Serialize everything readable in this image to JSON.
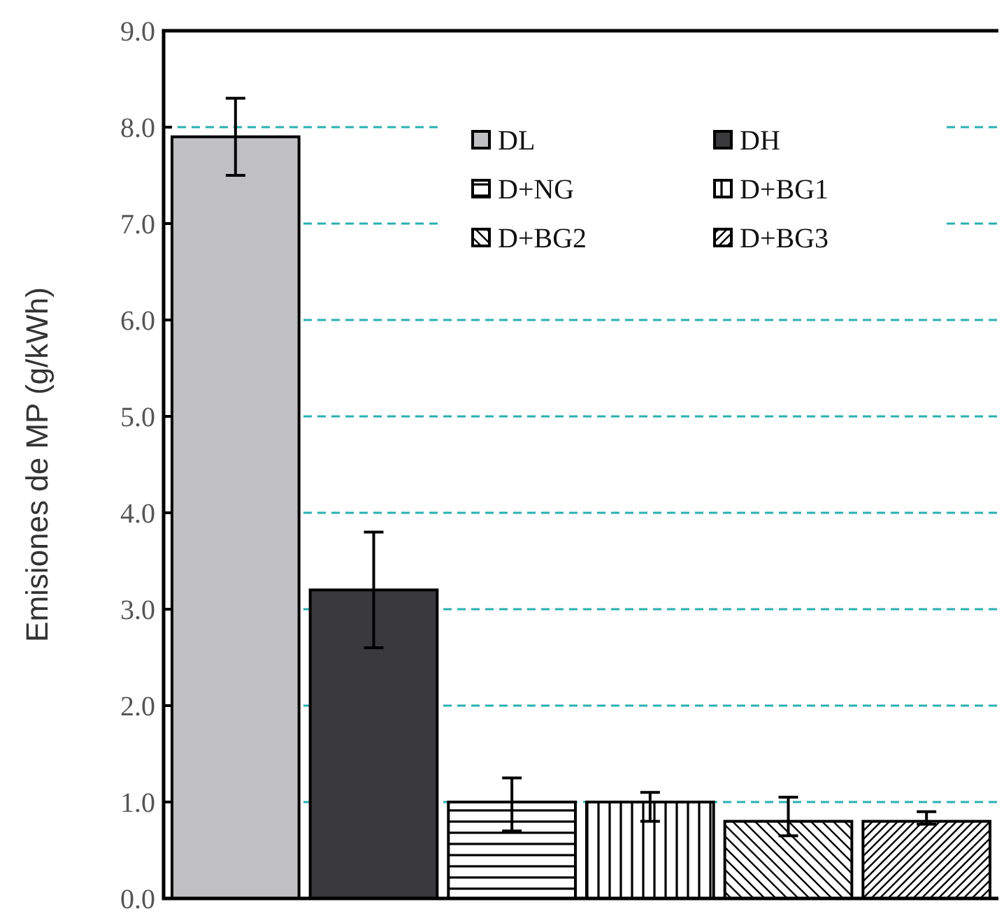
{
  "chart_data": {
    "type": "bar",
    "ylabel": "Emisiones de MP (g/kWh)",
    "categories": [
      null
    ],
    "series": [
      {
        "name": "DL",
        "color": "#c0c0c2",
        "values": [
          7.9
        ],
        "errors": [
          [
            7.5,
            8.3
          ]
        ]
      },
      {
        "name": "DH",
        "color": "#3a3a3c",
        "values": [
          3.2
        ],
        "errors": [
          [
            2.6,
            3.8
          ]
        ]
      },
      {
        "name": "D+NG",
        "color": "#000000",
        "values": [
          1.0
        ],
        "errors": [
          [
            0.7,
            1.25
          ]
        ]
      },
      {
        "name": "D+BG1",
        "color": "#000000",
        "values": [
          1.0
        ],
        "errors": [
          [
            0.8,
            1.1
          ]
        ]
      },
      {
        "name": "D+BG2",
        "color": "#000000",
        "values": [
          0.8
        ],
        "errors": [
          [
            0.65,
            1.05
          ]
        ]
      },
      {
        "name": "D+BG3",
        "color": "#000000",
        "values": [
          0.8
        ],
        "errors": [
          [
            0.77,
            0.9
          ]
        ]
      }
    ],
    "ylim": [
      0,
      9
    ],
    "yticks": [
      {
        "value": 0,
        "label": "0.0"
      },
      {
        "value": 1,
        "label": "1.0"
      },
      {
        "value": 2,
        "label": "2.0"
      },
      {
        "value": 3,
        "label": "3.0"
      },
      {
        "value": 4,
        "label": "4.0"
      },
      {
        "value": 5,
        "label": "5.0"
      },
      {
        "value": 6,
        "label": "6.0"
      },
      {
        "value": 7,
        "label": "7.0"
      },
      {
        "value": 8,
        "label": "8.0"
      },
      {
        "value": 9,
        "label": "9.0"
      }
    ],
    "grid": "y",
    "legend": "top right"
  }
}
